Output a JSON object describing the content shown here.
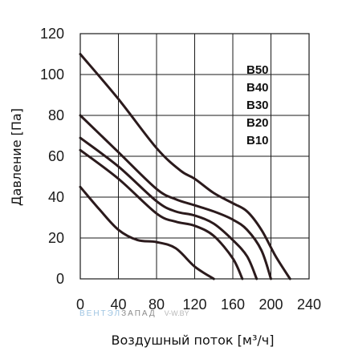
{
  "chart_data": {
    "type": "line",
    "title": "",
    "xlabel": "Воздушный поток [м³/ч]",
    "ylabel": "Давление [Па]",
    "xlim": [
      0,
      240
    ],
    "ylim": [
      0,
      120
    ],
    "x_ticks": [
      "0",
      "40",
      "80",
      "120",
      "160",
      "200",
      "240"
    ],
    "y_ticks": [
      "0",
      "20",
      "40",
      "60",
      "80",
      "100",
      "120"
    ],
    "grid": true,
    "legend_position": "top-right",
    "series_colors": "#2b1a1c",
    "series": [
      {
        "name": "B50",
        "x": [
          0,
          40,
          80,
          105,
          120,
          140,
          160,
          175,
          190,
          205,
          220
        ],
        "y": [
          110,
          88,
          64,
          53,
          49,
          42,
          37,
          33,
          24,
          11,
          0
        ]
      },
      {
        "name": "B40",
        "x": [
          0,
          40,
          80,
          100,
          120,
          140,
          160,
          175,
          190,
          200
        ],
        "y": [
          80,
          62,
          44,
          39,
          36,
          33,
          29,
          24,
          14,
          0
        ]
      },
      {
        "name": "B30",
        "x": [
          0,
          40,
          80,
          100,
          120,
          140,
          160,
          175,
          185
        ],
        "y": [
          69,
          55,
          38,
          33,
          31,
          27,
          19,
          11,
          0
        ]
      },
      {
        "name": "B20",
        "x": [
          0,
          40,
          80,
          100,
          120,
          140,
          160,
          170
        ],
        "y": [
          63,
          49,
          32,
          28,
          26,
          21,
          10,
          0
        ]
      },
      {
        "name": "B10",
        "x": [
          0,
          20,
          40,
          60,
          80,
          100,
          120,
          140
        ],
        "y": [
          45,
          34,
          24,
          19,
          18,
          15,
          6,
          0
        ]
      }
    ]
  },
  "watermark": {
    "brand_a": "ВЕНТЭЛ",
    "brand_b": "ЗАПАД",
    "site": "V-W.BY"
  }
}
